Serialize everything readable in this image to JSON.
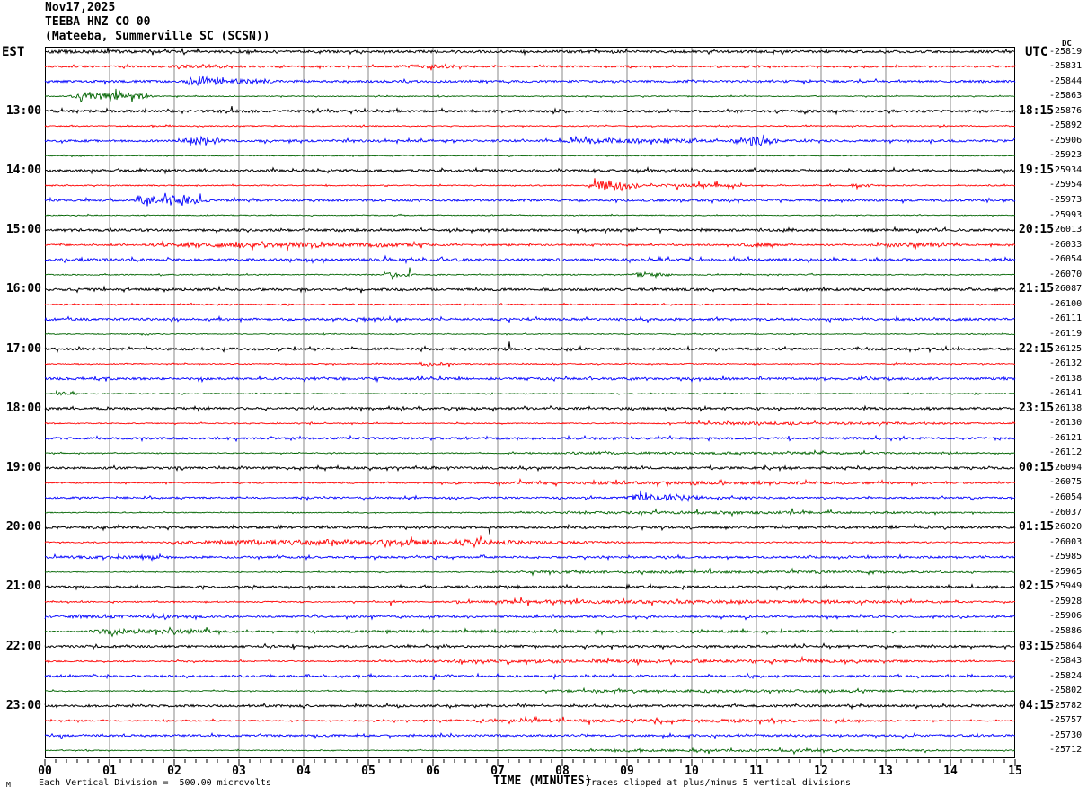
{
  "title": {
    "date": "Nov17,2025",
    "station": "TEEBA HNZ CO 00",
    "location": "(Mateeba, Summerville SC (SCSN))"
  },
  "left_axis": {
    "header": "EST"
  },
  "right_axis": {
    "header": "UTC",
    "dc_label": "DC"
  },
  "x_axis": {
    "label": "TIME (MINUTES)",
    "ticks": [
      "00",
      "01",
      "02",
      "03",
      "04",
      "05",
      "06",
      "07",
      "08",
      "09",
      "10",
      "11",
      "12",
      "13",
      "14",
      "15"
    ]
  },
  "footer": {
    "watermark": "M",
    "scale_note": "Each Vertical Division =  500.00 microvolts",
    "clip_note": "Traces clipped at plus/minus 5 vertical divisions"
  },
  "colors": {
    "trace_cycle": [
      "#000000",
      "#ff0000",
      "#0000ff",
      "#006400"
    ],
    "grid": "#8a8a8a",
    "border": "#000000",
    "background": "#ffffff"
  },
  "chart_data": {
    "type": "line",
    "kind": "helicorder-seismogram",
    "minutes_per_line": 15,
    "x_range_minutes": [
      0,
      15
    ],
    "microvolts_per_division": 500.0,
    "clip_divisions": 5,
    "rows": [
      {
        "est": "",
        "utc": "",
        "dc": "-25819",
        "noise": 1.3,
        "events": [
          [
            0.0,
            1.6,
            0.6
          ]
        ]
      },
      {
        "est": "",
        "utc": "",
        "dc": "-25831",
        "noise": 1.0,
        "events": [
          [
            1.9,
            3.1,
            0.8
          ],
          [
            5.4,
            6.6,
            0.8
          ]
        ]
      },
      {
        "est": "",
        "utc": "",
        "dc": "-25844",
        "noise": 1.2,
        "events": [
          [
            2.15,
            2.8,
            4.5
          ],
          [
            2.8,
            3.6,
            1.5
          ]
        ]
      },
      {
        "est": "",
        "utc": "",
        "dc": "-25863",
        "noise": 0.5,
        "events": [
          [
            0.35,
            1.75,
            3.5
          ]
        ]
      },
      {
        "est": "13:00",
        "utc": "18:15",
        "dc": "-25876",
        "noise": 1.3,
        "events": []
      },
      {
        "est": "",
        "utc": "",
        "dc": "-25892",
        "noise": 0.6,
        "events": []
      },
      {
        "est": "",
        "utc": "",
        "dc": "-25906",
        "noise": 1.2,
        "events": [
          [
            2.1,
            2.8,
            3.0
          ],
          [
            7.9,
            10.4,
            1.5
          ],
          [
            10.6,
            11.35,
            5.0
          ]
        ]
      },
      {
        "est": "",
        "utc": "",
        "dc": "-25923",
        "noise": 0.5,
        "events": []
      },
      {
        "est": "14:00",
        "utc": "19:15",
        "dc": "-25934",
        "noise": 1.3,
        "events": []
      },
      {
        "est": "",
        "utc": "",
        "dc": "-25954",
        "noise": 0.6,
        "events": [
          [
            8.35,
            9.3,
            4.5
          ],
          [
            9.3,
            11.0,
            1.2
          ],
          [
            12.4,
            12.9,
            0.9
          ]
        ]
      },
      {
        "est": "",
        "utc": "",
        "dc": "-25973",
        "noise": 1.2,
        "events": [
          [
            1.35,
            2.6,
            4.2
          ]
        ]
      },
      {
        "est": "",
        "utc": "",
        "dc": "-25993",
        "noise": 0.5,
        "events": []
      },
      {
        "est": "15:00",
        "utc": "20:15",
        "dc": "-26013",
        "noise": 1.3,
        "events": []
      },
      {
        "est": "",
        "utc": "",
        "dc": "-26033",
        "noise": 0.9,
        "events": [
          [
            1.4,
            6.6,
            1.6
          ],
          [
            10.7,
            11.4,
            1.5
          ],
          [
            12.8,
            14.2,
            1.6
          ]
        ]
      },
      {
        "est": "",
        "utc": "",
        "dc": "-26054",
        "noise": 1.4,
        "events": []
      },
      {
        "est": "",
        "utc": "",
        "dc": "-26070",
        "noise": 0.6,
        "events": [
          [
            5.2,
            5.8,
            1.6
          ],
          [
            9.0,
            9.7,
            1.8
          ]
        ]
      },
      {
        "est": "16:00",
        "utc": "21:15",
        "dc": "-26087",
        "noise": 1.3,
        "events": []
      },
      {
        "est": "",
        "utc": "",
        "dc": "-26100",
        "noise": 0.6,
        "events": []
      },
      {
        "est": "",
        "utc": "",
        "dc": "-26111",
        "noise": 1.3,
        "events": []
      },
      {
        "est": "",
        "utc": "",
        "dc": "-26119",
        "noise": 0.5,
        "events": []
      },
      {
        "est": "17:00",
        "utc": "22:15",
        "dc": "-26125",
        "noise": 1.3,
        "events": []
      },
      {
        "est": "",
        "utc": "",
        "dc": "-26132",
        "noise": 0.6,
        "events": [
          [
            5.7,
            6.35,
            1.4
          ]
        ]
      },
      {
        "est": "",
        "utc": "",
        "dc": "-26138",
        "noise": 1.3,
        "events": []
      },
      {
        "est": "",
        "utc": "",
        "dc": "-26141",
        "noise": 0.5,
        "events": [
          [
            0.1,
            0.6,
            1.1
          ]
        ]
      },
      {
        "est": "18:00",
        "utc": "23:15",
        "dc": "-26138",
        "noise": 1.2,
        "events": []
      },
      {
        "est": "",
        "utc": "",
        "dc": "-26130",
        "noise": 0.6,
        "events": [
          [
            9.5,
            15.0,
            0.8
          ]
        ]
      },
      {
        "est": "",
        "utc": "",
        "dc": "-26121",
        "noise": 1.2,
        "events": []
      },
      {
        "est": "",
        "utc": "",
        "dc": "-26112",
        "noise": 0.5,
        "events": [
          [
            7.0,
            15.0,
            0.8
          ]
        ]
      },
      {
        "est": "19:00",
        "utc": "00:15",
        "dc": "-26094",
        "noise": 1.2,
        "events": []
      },
      {
        "est": "",
        "utc": "",
        "dc": "-26075",
        "noise": 0.7,
        "events": [
          [
            6.0,
            15.0,
            0.9
          ]
        ]
      },
      {
        "est": "",
        "utc": "",
        "dc": "-26054",
        "noise": 1.0,
        "events": [
          [
            8.9,
            10.3,
            2.6
          ]
        ]
      },
      {
        "est": "",
        "utc": "",
        "dc": "-26037",
        "noise": 0.5,
        "events": [
          [
            7.0,
            15.0,
            0.9
          ]
        ]
      },
      {
        "est": "20:00",
        "utc": "01:15",
        "dc": "-26020",
        "noise": 1.2,
        "events": []
      },
      {
        "est": "",
        "utc": "",
        "dc": "-26003",
        "noise": 0.7,
        "events": [
          [
            1.7,
            9.2,
            2.0
          ]
        ]
      },
      {
        "est": "",
        "utc": "",
        "dc": "-25985",
        "noise": 1.1,
        "events": [
          [
            0.0,
            2.6,
            0.5
          ]
        ]
      },
      {
        "est": "",
        "utc": "",
        "dc": "-25965",
        "noise": 0.5,
        "events": [
          [
            6.5,
            15.0,
            0.9
          ]
        ]
      },
      {
        "est": "21:00",
        "utc": "02:15",
        "dc": "-25949",
        "noise": 1.2,
        "events": []
      },
      {
        "est": "",
        "utc": "",
        "dc": "-25928",
        "noise": 0.7,
        "events": [
          [
            6.0,
            15.0,
            1.1
          ]
        ]
      },
      {
        "est": "",
        "utc": "",
        "dc": "-25906",
        "noise": 1.1,
        "events": [
          [
            0.0,
            3.0,
            0.5
          ]
        ]
      },
      {
        "est": "",
        "utc": "",
        "dc": "-25886",
        "noise": 0.7,
        "events": [
          [
            0.5,
            3.2,
            1.8
          ],
          [
            3.2,
            15.0,
            0.7
          ]
        ]
      },
      {
        "est": "22:00",
        "utc": "03:15",
        "dc": "-25864",
        "noise": 1.2,
        "events": []
      },
      {
        "est": "",
        "utc": "",
        "dc": "-25843",
        "noise": 0.7,
        "events": [
          [
            5.0,
            15.0,
            1.0
          ]
        ]
      },
      {
        "est": "",
        "utc": "",
        "dc": "-25824",
        "noise": 1.1,
        "events": []
      },
      {
        "est": "",
        "utc": "",
        "dc": "-25802",
        "noise": 0.5,
        "events": [
          [
            7.0,
            15.0,
            0.9
          ]
        ]
      },
      {
        "est": "23:00",
        "utc": "04:15",
        "dc": "-25782",
        "noise": 1.2,
        "events": []
      },
      {
        "est": "",
        "utc": "",
        "dc": "-25757",
        "noise": 0.7,
        "events": [
          [
            5.5,
            13.5,
            1.0
          ]
        ]
      },
      {
        "est": "",
        "utc": "",
        "dc": "-25730",
        "noise": 1.1,
        "events": []
      },
      {
        "est": "",
        "utc": "",
        "dc": "-25712",
        "noise": 0.5,
        "events": [
          [
            7.5,
            15.0,
            0.8
          ]
        ]
      }
    ]
  }
}
